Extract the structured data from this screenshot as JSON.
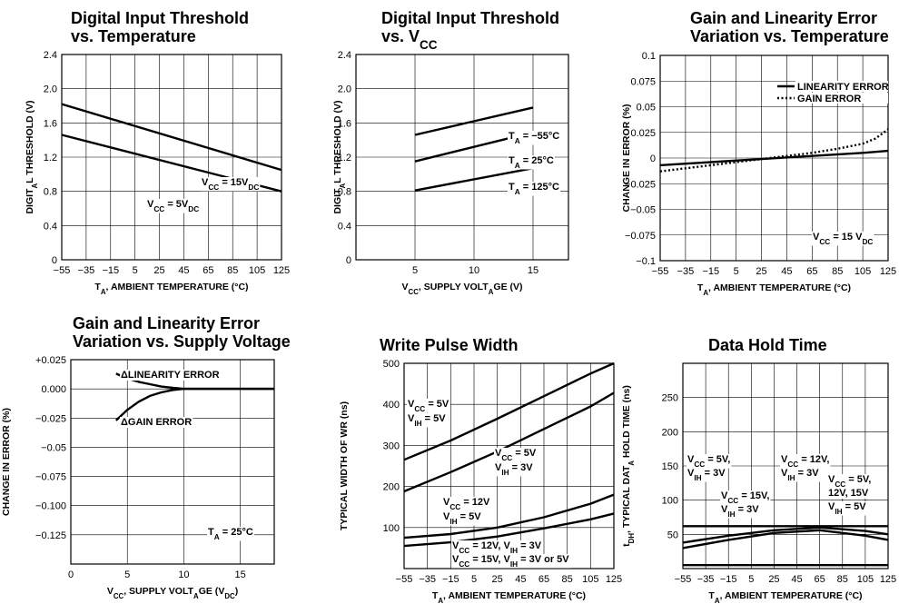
{
  "chart_data": [
    {
      "type": "line",
      "title": [
        "Digital Input Threshold",
        "vs. Temperature"
      ],
      "xlabel": "TA, AMBIENT TEMPERATURE (°C)",
      "ylabel": "DIGITAL THRESHOLD (V)",
      "xlim": [
        -55,
        125
      ],
      "ylim": [
        0,
        2.4
      ],
      "xticks": [
        -55,
        -35,
        -15,
        5,
        25,
        45,
        65,
        85,
        105,
        125
      ],
      "xticklabels": [
        "−55",
        "−35",
        "−15",
        "5",
        "25",
        "45",
        "65",
        "85",
        "105",
        "125"
      ],
      "yticks": [
        0,
        0.4,
        0.8,
        1.2,
        1.6,
        2.0,
        2.4
      ],
      "yticklabels": [
        "0",
        "0.4",
        "0.8",
        "1.2",
        "1.6",
        "2.0",
        "2.4"
      ],
      "grid": true,
      "series": [
        {
          "name": "VCC = 15VDC",
          "x": [
            -55,
            125
          ],
          "y": [
            1.82,
            1.05
          ]
        },
        {
          "name": "VCC = 5VDC",
          "x": [
            -55,
            125
          ],
          "y": [
            1.46,
            0.8
          ]
        }
      ],
      "annotations": [
        "VCC = 15VDC",
        "VCC = 5VDC"
      ]
    },
    {
      "type": "line",
      "title": [
        "Digital Input Threshold",
        "vs. VCC"
      ],
      "xlabel": "VCC, SUPPLY VOLTAGE (V)",
      "ylabel": "DIGITAL THRESHOLD (V)",
      "xlim": [
        0,
        18
      ],
      "ylim": [
        0,
        2.4
      ],
      "xticks": [
        5,
        10,
        15
      ],
      "xticklabels": [
        "5",
        "10",
        "15"
      ],
      "yticks": [
        0,
        0.4,
        0.8,
        1.2,
        1.6,
        2.0,
        2.4
      ],
      "yticklabels": [
        "0",
        "0.4",
        "0.8",
        "1.2",
        "1.6",
        "2.0",
        "2.4"
      ],
      "grid": true,
      "series": [
        {
          "name": "TA = −55°C",
          "x": [
            5,
            15
          ],
          "y": [
            1.46,
            1.78
          ]
        },
        {
          "name": "TA = 25°C",
          "x": [
            5,
            15
          ],
          "y": [
            1.15,
            1.49
          ]
        },
        {
          "name": "TA = 125°C",
          "x": [
            5,
            15
          ],
          "y": [
            0.81,
            1.07
          ]
        }
      ],
      "annotations": [
        "TA = −55°C",
        "TA = 25°C",
        "TA = 125°C"
      ]
    },
    {
      "type": "line",
      "title": [
        "Gain and Linearity Error",
        "Variation vs. Temperature"
      ],
      "xlabel": "TA, AMBIENT TEMPERATURE (°C)",
      "ylabel": "CHANGE IN ERROR (%)",
      "xlim": [
        -55,
        125
      ],
      "ylim": [
        -0.1,
        0.1
      ],
      "xticks": [
        -55,
        -35,
        -15,
        5,
        25,
        45,
        65,
        85,
        105,
        125
      ],
      "xticklabels": [
        "−55",
        "−35",
        "−15",
        "5",
        "25",
        "45",
        "65",
        "85",
        "105",
        "125"
      ],
      "yticks": [
        -0.1,
        -0.075,
        -0.05,
        -0.025,
        0,
        0.025,
        0.05,
        0.075,
        0.1
      ],
      "yticklabels": [
        "−0.1",
        "−0.075",
        "−0.05",
        "−0.025",
        "0",
        "0.025",
        "0.05",
        "0.075",
        "0.1"
      ],
      "grid": true,
      "legend": [
        "LINEARITY ERROR",
        "GAIN ERROR"
      ],
      "legend_position": "top-right",
      "series": [
        {
          "name": "LINEARITY ERROR",
          "x": [
            -55,
            -15,
            25,
            65,
            105,
            125
          ],
          "y": [
            -0.007,
            -0.004,
            -0.001,
            0.002,
            0.005,
            0.007
          ]
        },
        {
          "name": "GAIN ERROR",
          "x": [
            -55,
            -35,
            -15,
            5,
            25,
            45,
            65,
            85,
            105,
            115,
            125
          ],
          "y": [
            -0.013,
            -0.01,
            -0.007,
            -0.004,
            -0.001,
            0.002,
            0.005,
            0.009,
            0.014,
            0.019,
            0.028
          ]
        }
      ],
      "annotations": [
        "VCC = 15 VDC"
      ]
    },
    {
      "type": "line",
      "title": [
        "Gain and Linearity Error",
        "Variation vs. Supply Voltage"
      ],
      "xlabel": "VCC, SUPPLY VOLTAGE (VDC)",
      "ylabel": "CHANGE IN ERROR (%)",
      "xlim": [
        0,
        18
      ],
      "ylim": [
        -0.15,
        0.025
      ],
      "xticks": [
        0,
        5,
        10,
        15
      ],
      "xticklabels": [
        "0",
        "5",
        "10",
        "15"
      ],
      "yticks": [
        0.025,
        0,
        -0.025,
        -0.05,
        -0.075,
        -0.1,
        -0.125
      ],
      "yticklabels": [
        "+0.025",
        "0.000",
        "−0.025",
        "−0.05",
        "−0.075",
        "−0.100",
        "−0.125"
      ],
      "grid": true,
      "series": [
        {
          "name": "ΔLINEARITY ERROR",
          "x": [
            4,
            5,
            6,
            7,
            8,
            9,
            10,
            12,
            18
          ],
          "y": [
            0.013,
            0.009,
            0.006,
            0.004,
            0.002,
            0.001,
            0,
            0,
            0
          ]
        },
        {
          "name": "ΔGAIN ERROR",
          "x": [
            4,
            5,
            6,
            7,
            8,
            9,
            10,
            12,
            18
          ],
          "y": [
            -0.027,
            -0.018,
            -0.011,
            -0.006,
            -0.003,
            -0.001,
            0,
            0,
            0
          ]
        }
      ],
      "annotations": [
        "ΔLINEARITY ERROR",
        "ΔGAIN ERROR",
        "TA = 25°C"
      ]
    },
    {
      "type": "line",
      "title": [
        "Write Pulse Width"
      ],
      "xlabel": "TA, AMBIENT TEMPERATURE (°C)",
      "ylabel": "TYPICAL WIDTH OF WR (ns)",
      "xlim": [
        -55,
        125
      ],
      "ylim": [
        0,
        500
      ],
      "xticks": [
        -55,
        -35,
        -15,
        5,
        25,
        45,
        65,
        85,
        105,
        125
      ],
      "xticklabels": [
        "−55",
        "−35",
        "−15",
        "5",
        "25",
        "45",
        "65",
        "85",
        "105",
        "125"
      ],
      "yticks": [
        100,
        200,
        300,
        400,
        500
      ],
      "yticklabels": [
        "100",
        "200",
        "300",
        "400",
        "500"
      ],
      "grid": true,
      "series": [
        {
          "name": "VCC = 5V, VIH = 5V",
          "x": [
            -55,
            -15,
            25,
            65,
            105,
            125
          ],
          "y": [
            265,
            312,
            365,
            420,
            475,
            500
          ]
        },
        {
          "name": "VCC = 5V, VIH = 3V",
          "x": [
            -55,
            -15,
            25,
            65,
            105,
            125
          ],
          "y": [
            188,
            235,
            285,
            340,
            395,
            428
          ]
        },
        {
          "name": "VCC = 12V, VIH = 5V",
          "x": [
            -55,
            -15,
            25,
            65,
            105,
            125
          ],
          "y": [
            75,
            84,
            100,
            125,
            158,
            180
          ]
        },
        {
          "name": "VCC = 12V, VIH = 3V; VCC = 15V, VIH = 3V or 5V",
          "x": [
            -55,
            -15,
            25,
            65,
            105,
            125
          ],
          "y": [
            55,
            64,
            78,
            98,
            120,
            134
          ]
        }
      ],
      "annotations": [
        "VCC = 5V",
        "VIH = 5V",
        "VCC = 5V",
        "VIH = 3V",
        "VCC = 12V",
        "VIH = 5V",
        "VCC = 12V, VIH = 3V",
        "VCC = 15V, VIH = 3V or 5V"
      ]
    },
    {
      "type": "line",
      "title": [
        "Data Hold Time"
      ],
      "xlabel": "TA, AMBIENT TEMPERATURE (°C)",
      "ylabel": "tDH, TYPICAL DATA HOLD TIME (ns)",
      "xlim": [
        -55,
        125
      ],
      "ylim": [
        0,
        300
      ],
      "xticks": [
        -55,
        -35,
        -15,
        5,
        25,
        45,
        65,
        85,
        105,
        125
      ],
      "xticklabels": [
        "−55",
        "−35",
        "−15",
        "5",
        "25",
        "45",
        "65",
        "85",
        "105",
        "125"
      ],
      "yticks": [
        50,
        100,
        150,
        200,
        250
      ],
      "yticklabels": [
        "50",
        "100",
        "150",
        "200",
        "250"
      ],
      "grid": true,
      "series": [
        {
          "name": "VCC = 5V, VIH = 3V",
          "x": [
            -55,
            125
          ],
          "y": [
            62,
            62
          ]
        },
        {
          "name": "VCC = 15V, VIH = 3V",
          "x": [
            -55,
            -15,
            25,
            65,
            105,
            125
          ],
          "y": [
            38,
            48,
            56,
            60,
            55,
            50
          ]
        },
        {
          "name": "VCC = 12V, VIH = 3V",
          "x": [
            -55,
            -15,
            25,
            65,
            105,
            125
          ],
          "y": [
            30,
            42,
            52,
            56,
            48,
            42
          ]
        },
        {
          "name": "VCC = 5V, 12V, 15V, VIH = 5V",
          "x": [
            -55,
            125
          ],
          "y": [
            5,
            5
          ]
        }
      ],
      "annotations": [
        "VCC = 5V,",
        "VIH = 3V",
        "VCC = 15V,",
        "VIH = 3V",
        "VCC = 12V,",
        "VIH = 3V",
        "VCC = 5V,",
        "12V, 15V",
        "VIH = 5V"
      ]
    }
  ]
}
